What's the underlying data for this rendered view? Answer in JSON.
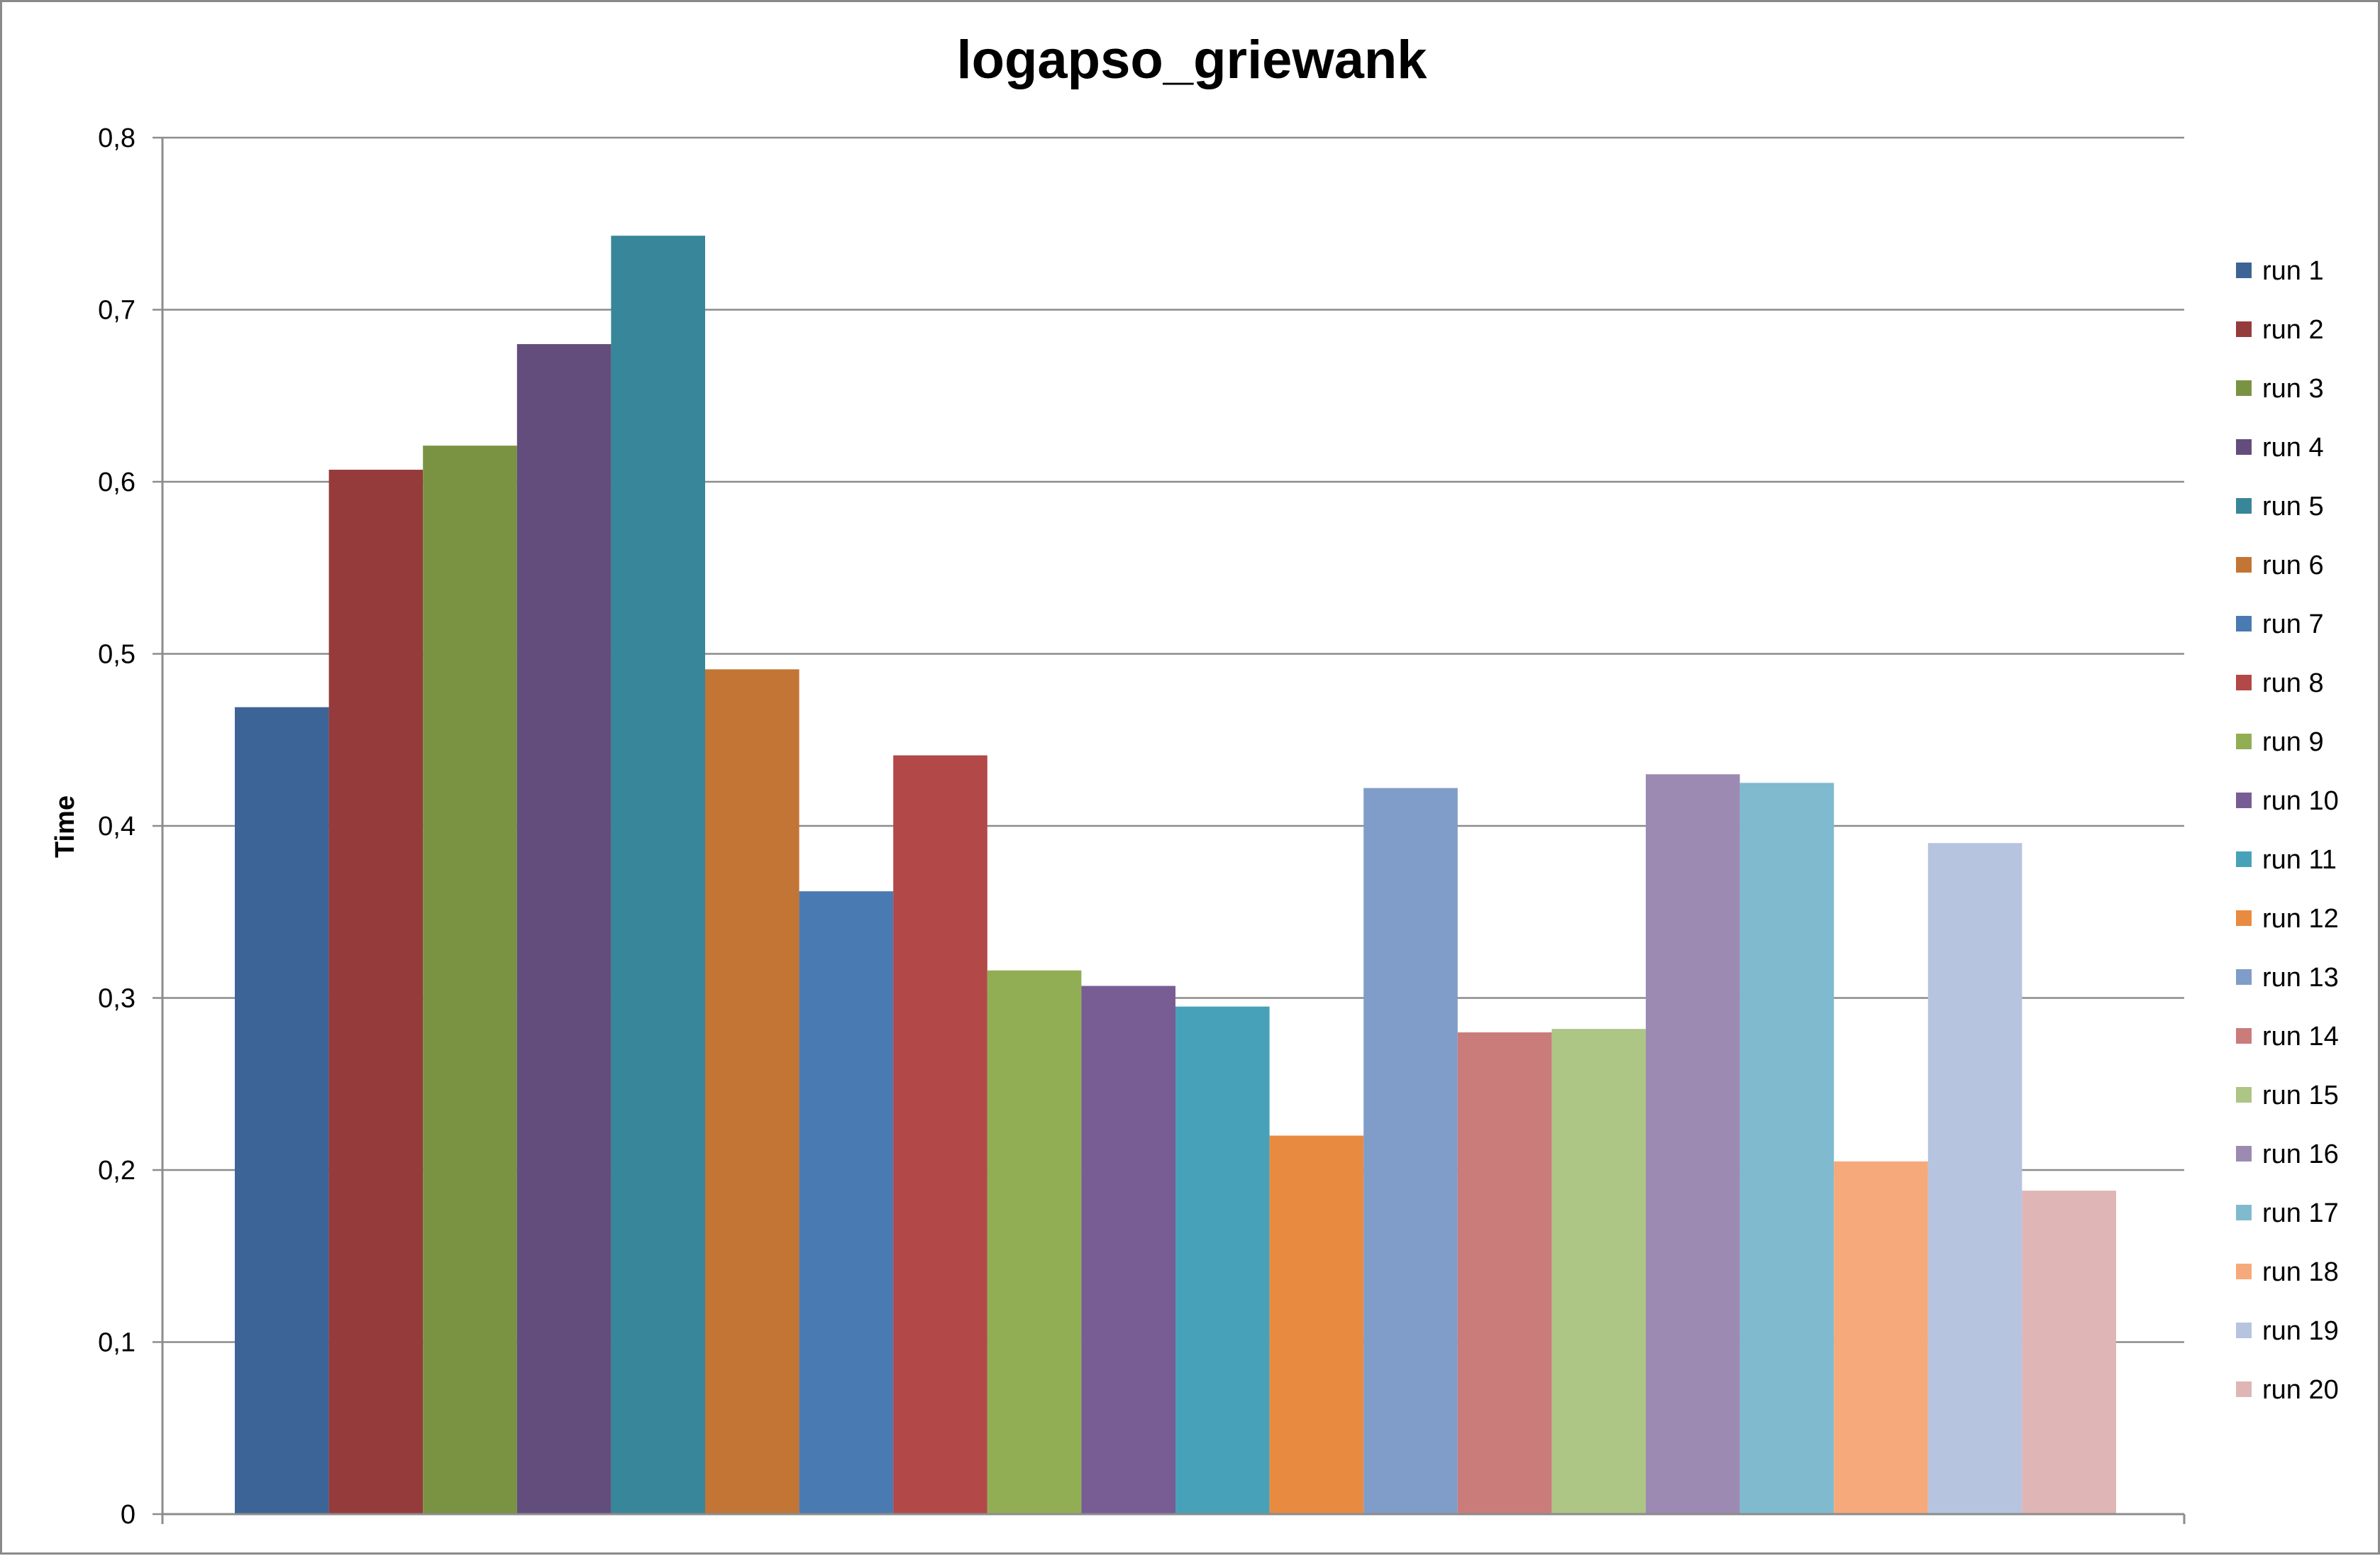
{
  "chart_data": {
    "type": "bar",
    "title": "logapso_griewank",
    "xlabel": "",
    "ylabel": "Time",
    "ylim": [
      0,
      0.8
    ],
    "y_ticks": [
      0,
      0.1,
      0.2,
      0.3,
      0.4,
      0.5,
      0.6,
      0.7,
      0.8
    ],
    "y_tick_labels": [
      "0",
      "0,1",
      "0,2",
      "0,3",
      "0,4",
      "0,5",
      "0,6",
      "0,7",
      "0,8"
    ],
    "grid": true,
    "legend_position": "right",
    "categories": [
      ""
    ],
    "series": [
      {
        "name": "run 1",
        "values": [
          0.469
        ],
        "color": "#3C6496"
      },
      {
        "name": "run 2",
        "values": [
          0.607
        ],
        "color": "#963B3B"
      },
      {
        "name": "run 3",
        "values": [
          0.621
        ],
        "color": "#7A9343"
      },
      {
        "name": "run 4",
        "values": [
          0.68
        ],
        "color": "#634D7D"
      },
      {
        "name": "run 5",
        "values": [
          0.743
        ],
        "color": "#38869A"
      },
      {
        "name": "run 6",
        "values": [
          0.491
        ],
        "color": "#C27535"
      },
      {
        "name": "run 7",
        "values": [
          0.362
        ],
        "color": "#4A7AB2"
      },
      {
        "name": "run 8",
        "values": [
          0.441
        ],
        "color": "#B24847"
      },
      {
        "name": "run 9",
        "values": [
          0.316
        ],
        "color": "#92AE55"
      },
      {
        "name": "run 10",
        "values": [
          0.307
        ],
        "color": "#785D95"
      },
      {
        "name": "run 11",
        "values": [
          0.295
        ],
        "color": "#47A2B9"
      },
      {
        "name": "run 12",
        "values": [
          0.22
        ],
        "color": "#E88B41"
      },
      {
        "name": "run 13",
        "values": [
          0.422
        ],
        "color": "#809CC8"
      },
      {
        "name": "run 14",
        "values": [
          0.28
        ],
        "color": "#CA7C7B"
      },
      {
        "name": "run 15",
        "values": [
          0.282
        ],
        "color": "#ADC585"
      },
      {
        "name": "run 16",
        "values": [
          0.43
        ],
        "color": "#9C8AB3"
      },
      {
        "name": "run 17",
        "values": [
          0.425
        ],
        "color": "#7FBACF"
      },
      {
        "name": "run 18",
        "values": [
          0.205
        ],
        "color": "#F6A97A"
      },
      {
        "name": "run 19",
        "values": [
          0.39
        ],
        "color": "#B6C4DF"
      },
      {
        "name": "run 20",
        "values": [
          0.188
        ],
        "color": "#DFB6B5"
      }
    ]
  }
}
